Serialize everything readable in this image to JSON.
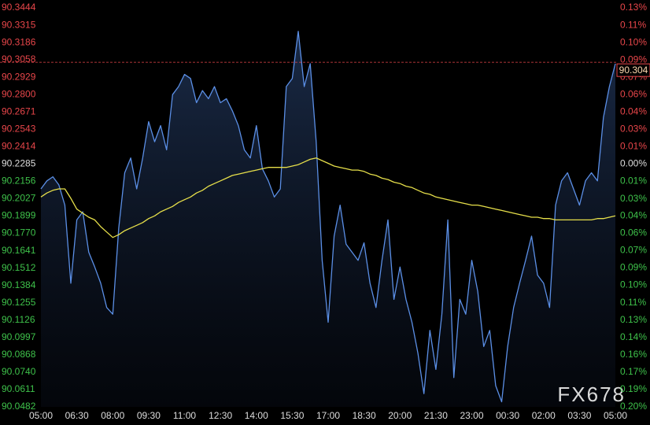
{
  "chart_data": {
    "type": "line",
    "watermark": "FX678",
    "categories": [
      "05:00",
      null,
      null,
      null,
      null,
      null,
      "06:30",
      null,
      null,
      null,
      null,
      null,
      "08:00",
      null,
      null,
      null,
      null,
      null,
      "09:30",
      null,
      null,
      null,
      null,
      null,
      "11:00",
      null,
      null,
      null,
      null,
      null,
      "12:30",
      null,
      null,
      null,
      null,
      null,
      "14:00",
      null,
      null,
      null,
      null,
      null,
      "15:30",
      null,
      null,
      null,
      null,
      null,
      "17:00",
      null,
      null,
      null,
      null,
      null,
      "18:30",
      null,
      null,
      null,
      null,
      null,
      "20:00",
      null,
      null,
      null,
      null,
      null,
      "21:30",
      null,
      null,
      null,
      null,
      null,
      "23:00",
      null,
      null,
      null,
      null,
      null,
      "00:30",
      null,
      null,
      null,
      null,
      null,
      "02:00",
      null,
      null,
      null,
      null,
      null,
      "03:30",
      null,
      null,
      null,
      null,
      null,
      "05:00"
    ],
    "series": [
      {
        "color": "#5b8fe6",
        "fill": true,
        "values": [
          90.21,
          90.216,
          90.219,
          90.213,
          90.198,
          90.14,
          90.187,
          90.193,
          90.163,
          90.152,
          90.14,
          90.122,
          90.117,
          90.181,
          90.222,
          90.233,
          90.21,
          90.233,
          90.26,
          90.245,
          90.257,
          90.239,
          90.28,
          90.286,
          90.295,
          90.292,
          90.274,
          90.283,
          90.277,
          90.286,
          90.274,
          90.277,
          90.268,
          90.257,
          90.239,
          90.233,
          90.257,
          90.225,
          90.216,
          90.204,
          90.21,
          90.286,
          90.292,
          90.327,
          90.286,
          90.303,
          90.245,
          90.157,
          90.111,
          90.175,
          90.198,
          90.169,
          90.163,
          90.157,
          90.17,
          90.14,
          90.122,
          90.157,
          90.187,
          90.128,
          90.152,
          90.128,
          90.111,
          90.088,
          90.058,
          90.105,
          90.076,
          90.117,
          90.187,
          90.07,
          90.128,
          90.117,
          90.157,
          90.134,
          90.093,
          90.105,
          90.064,
          90.052,
          90.093,
          90.122,
          90.14,
          90.157,
          90.175,
          90.146,
          90.14,
          90.122,
          90.198,
          90.216,
          90.222,
          90.21,
          90.198,
          90.216,
          90.222,
          90.216,
          90.263,
          90.286,
          90.303
        ]
      },
      {
        "color": "#e6df4a",
        "fill": false,
        "values": [
          90.204,
          90.207,
          90.209,
          90.21,
          90.21,
          90.203,
          90.195,
          90.192,
          90.189,
          90.187,
          90.182,
          90.178,
          90.174,
          90.176,
          90.179,
          90.181,
          90.183,
          90.185,
          90.188,
          90.19,
          90.193,
          90.195,
          90.197,
          90.2,
          90.202,
          90.204,
          90.207,
          90.209,
          90.212,
          90.214,
          90.216,
          90.218,
          90.22,
          90.221,
          90.222,
          90.223,
          90.224,
          90.225,
          90.226,
          90.226,
          90.226,
          90.226,
          90.227,
          90.228,
          90.23,
          90.232,
          90.233,
          90.231,
          90.229,
          90.227,
          90.226,
          90.225,
          90.224,
          90.224,
          90.223,
          90.221,
          90.22,
          90.218,
          90.217,
          90.215,
          90.214,
          90.212,
          90.211,
          90.209,
          90.207,
          90.206,
          90.204,
          90.203,
          90.202,
          90.201,
          90.2,
          90.199,
          90.198,
          90.198,
          90.197,
          90.196,
          90.195,
          90.194,
          90.193,
          90.192,
          90.191,
          90.19,
          90.189,
          90.189,
          90.188,
          90.188,
          90.187,
          90.187,
          90.187,
          90.187,
          90.187,
          90.187,
          90.187,
          90.188,
          90.188,
          90.189,
          90.19
        ]
      }
    ],
    "last_price": 90.304,
    "ylim": [
      90.0482,
      90.3444
    ],
    "yticks": [
      90.3444,
      90.3315,
      90.3186,
      90.3058,
      90.2929,
      {
        "value": 90.28,
        "label": "90.2800"
      },
      90.2671,
      90.2543,
      90.2414,
      90.2285,
      90.2156,
      90.2027,
      90.1899,
      {
        "value": 90.177,
        "label": "90.1770"
      },
      90.1641,
      90.1512,
      90.1384,
      90.1255,
      90.1126,
      90.0997,
      90.0868,
      {
        "value": 90.074,
        "label": "90.0740"
      },
      90.0611,
      90.0482
    ],
    "y2lim": [
      -0.1998,
      0.1285
    ],
    "y2ticks": [
      {
        "value": 0.1285,
        "label": "0.13%"
      },
      {
        "value": 0.1142,
        "label": "0.11%"
      },
      {
        "value": 0.0999,
        "label": "0.10%"
      },
      {
        "value": 0.0857,
        "label": "0.09%"
      },
      {
        "value": 0.0714,
        "label": "0.07%"
      },
      {
        "value": 0.0571,
        "label": "0.06%"
      },
      {
        "value": 0.0428,
        "label": "0.04%"
      },
      {
        "value": 0.0286,
        "label": "0.03%"
      },
      {
        "value": 0.0143,
        "label": "0.01%"
      },
      {
        "value": 0,
        "label": "0.00%"
      },
      {
        "value": -0.0143,
        "label": "0.01%"
      },
      {
        "value": -0.0286,
        "label": "0.03%"
      },
      {
        "value": -0.0427,
        "label": "0.04%"
      },
      {
        "value": -0.057,
        "label": "0.06%"
      },
      {
        "value": -0.0713,
        "label": "0.07%"
      },
      {
        "value": -0.0855,
        "label": "0.09%"
      },
      {
        "value": -0.0998,
        "label": "0.10%"
      },
      {
        "value": -0.1141,
        "label": "0.11%"
      },
      {
        "value": -0.1284,
        "label": "0.13%"
      },
      {
        "value": -0.1427,
        "label": "0.14%"
      },
      {
        "value": -0.1569,
        "label": "0.16%"
      },
      {
        "value": -0.1712,
        "label": "0.17%"
      },
      {
        "value": -0.1855,
        "label": "0.19%"
      },
      {
        "value": -0.1998,
        "label": "0.20%"
      }
    ],
    "up_color": "#e8464a",
    "down_color": "#3ec14a",
    "flat_color": "#dddddd",
    "last_price_color": "#e8464a",
    "grid": false
  }
}
